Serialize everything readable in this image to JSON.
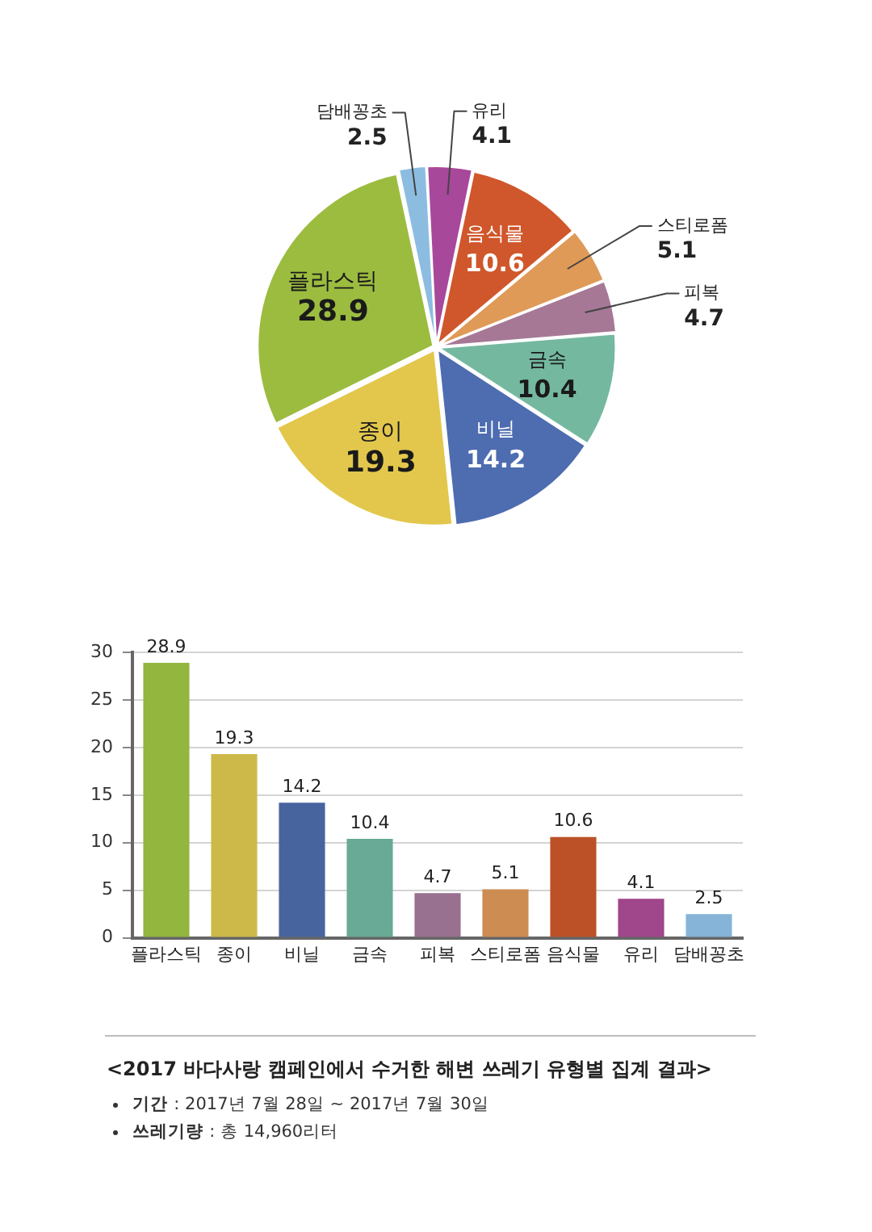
{
  "chart_data": [
    {
      "type": "pie",
      "categories": [
        "유리",
        "음식물",
        "스티로폼",
        "피복",
        "금속",
        "비닐",
        "종이",
        "플라스틱",
        "담배꽁초"
      ],
      "values": [
        4.1,
        10.6,
        5.1,
        4.7,
        10.4,
        14.2,
        19.3,
        28.9,
        2.5
      ],
      "colors": [
        "#a8489a",
        "#d0572b",
        "#df9a58",
        "#a67896",
        "#74b8a0",
        "#4e6cb0",
        "#e2c74c",
        "#9cbc40",
        "#8cbde0"
      ],
      "data_labels": true
    },
    {
      "type": "bar",
      "categories": [
        "플라스틱",
        "종이",
        "비닐",
        "금속",
        "피복",
        "스티로폼",
        "음식물",
        "유리",
        "담배꽁초"
      ],
      "values": [
        28.9,
        19.3,
        14.2,
        10.4,
        4.7,
        5.1,
        10.6,
        4.1,
        2.5
      ],
      "colors": [
        "#92b63e",
        "#cdb94a",
        "#48649f",
        "#68aa95",
        "#987090",
        "#cc8c52",
        "#bc5128",
        "#a0468a",
        "#85b4d8"
      ],
      "ylim": [
        0,
        30
      ],
      "yticks": [
        0,
        5,
        10,
        15,
        20,
        25,
        30
      ],
      "grid": "y",
      "data_labels": true,
      "annotations": [
        "<2017 바다사랑 캠페인에서 수거한 해변 쓰레기 유형별 집계 결과>",
        "기간 : 2017년 7월 28일 ~ 2017년 7월 30일",
        "쓰레기량 : 총 14,960리터"
      ]
    }
  ]
}
